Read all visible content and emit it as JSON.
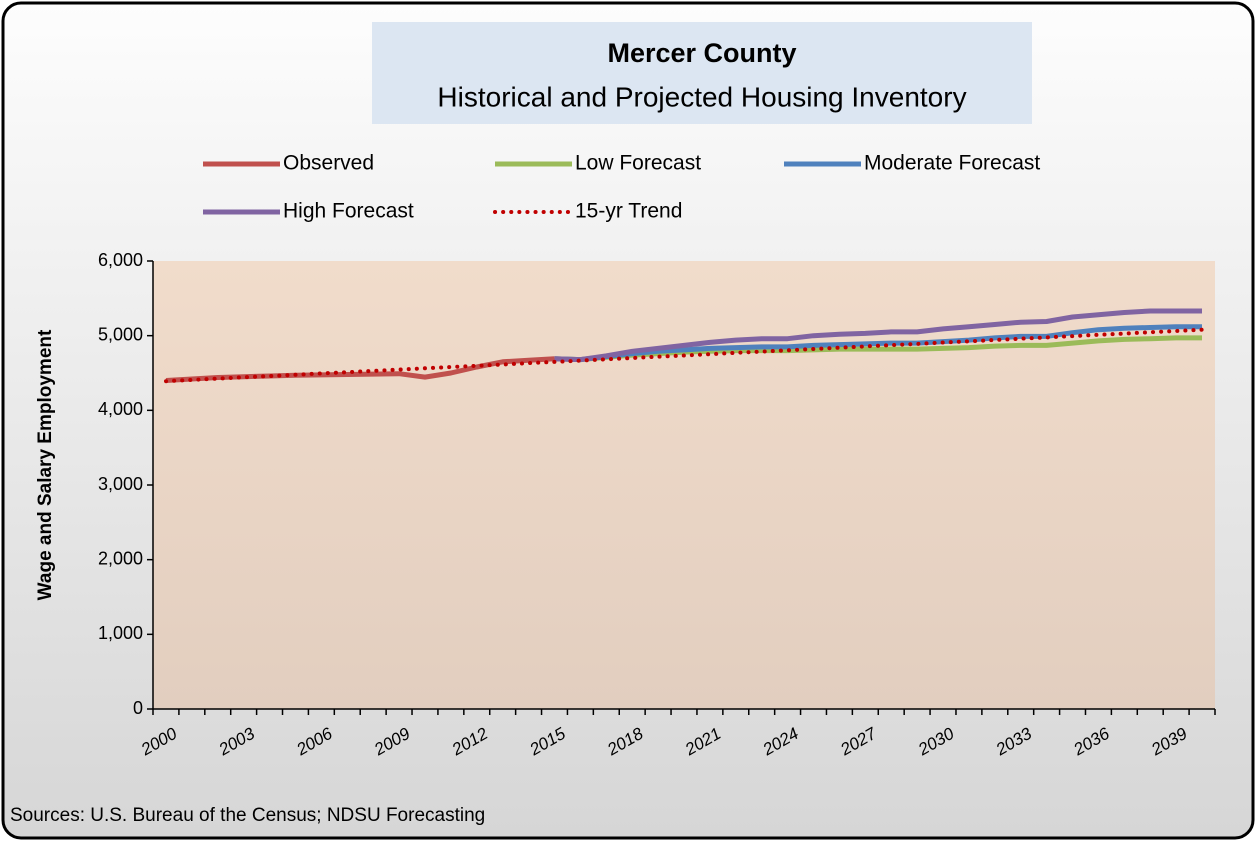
{
  "chart_data": {
    "type": "line",
    "title": "Mercer County",
    "subtitle": "Historical and Projected Housing Inventory",
    "ylabel": "Wage and Salary Employment",
    "source": "Sources:  U.S. Bureau of the Census; NDSU Forecasting",
    "categories": [
      2000,
      null,
      null,
      2003,
      null,
      null,
      2006,
      null,
      null,
      2009,
      null,
      null,
      2012,
      null,
      null,
      2015,
      null,
      null,
      2018,
      null,
      null,
      2021,
      null,
      null,
      2024,
      null,
      null,
      2027,
      null,
      null,
      2030,
      null,
      null,
      2033,
      null,
      null,
      2036,
      null,
      null,
      2039,
      null
    ],
    "ylim": [
      0,
      6000
    ],
    "yticks": [
      0,
      {
        "value": 1000,
        "label": "1,000"
      },
      {
        "value": 2000,
        "label": "2,000"
      },
      {
        "value": 3000,
        "label": "3,000"
      },
      {
        "value": 4000,
        "label": "4,000"
      },
      {
        "value": 5000,
        "label": "5,000"
      },
      {
        "value": 6000,
        "label": "6,000"
      }
    ],
    "series": [
      {
        "name": "Observed",
        "color": "#c0504d",
        "style": "solid",
        "values": [
          4400,
          4420,
          4440,
          4450,
          4460,
          4470,
          4475,
          4480,
          4485,
          4490,
          4445,
          4500,
          4580,
          4650,
          4670,
          4690,
          null,
          null,
          null,
          null,
          null,
          null,
          null,
          null,
          null,
          null,
          null,
          null,
          null,
          null,
          null,
          null,
          null,
          null,
          null,
          null,
          null,
          null,
          null,
          null,
          null
        ]
      },
      {
        "name": "Low Forecast",
        "color": "#9bbb59",
        "style": "solid",
        "values": [
          null,
          null,
          null,
          null,
          null,
          null,
          null,
          null,
          null,
          null,
          null,
          null,
          null,
          null,
          null,
          4690,
          4680,
          4710,
          4740,
          4760,
          4780,
          4790,
          4800,
          4800,
          4800,
          4810,
          4820,
          4820,
          4820,
          4820,
          4830,
          4840,
          4860,
          4870,
          4870,
          4900,
          4930,
          4950,
          4960,
          4970,
          4970
        ]
      },
      {
        "name": "Moderate Forecast",
        "color": "#4f81bd",
        "style": "solid",
        "values": [
          null,
          null,
          null,
          null,
          null,
          null,
          null,
          null,
          null,
          null,
          null,
          null,
          null,
          null,
          null,
          4690,
          4680,
          4720,
          4760,
          4790,
          4810,
          4830,
          4840,
          4850,
          4850,
          4870,
          4880,
          4890,
          4900,
          4900,
          4920,
          4940,
          4970,
          4990,
          4990,
          5040,
          5080,
          5100,
          5110,
          5120,
          5120
        ]
      },
      {
        "name": "High Forecast",
        "color": "#8064a2",
        "style": "solid",
        "values": [
          null,
          null,
          null,
          null,
          null,
          null,
          null,
          null,
          null,
          null,
          null,
          null,
          null,
          null,
          null,
          4690,
          4680,
          4730,
          4790,
          4830,
          4870,
          4910,
          4940,
          4960,
          4960,
          5000,
          5020,
          5030,
          5050,
          5050,
          5090,
          5120,
          5150,
          5180,
          5190,
          5250,
          5280,
          5310,
          5330,
          5330,
          5330
        ]
      },
      {
        "name": "15-yr Trend",
        "color": "#c00000",
        "style": "dotted",
        "values": [
          4390,
          4407,
          4425,
          4442,
          4459,
          4476,
          4494,
          4511,
          4528,
          4545,
          4563,
          4580,
          4597,
          4614,
          4632,
          4649,
          4666,
          4683,
          4701,
          4718,
          4735,
          4752,
          4770,
          4787,
          4804,
          4821,
          4839,
          4856,
          4873,
          4890,
          4908,
          4925,
          4942,
          4959,
          4977,
          4994,
          5011,
          5028,
          5046,
          5063,
          5080
        ]
      }
    ]
  }
}
